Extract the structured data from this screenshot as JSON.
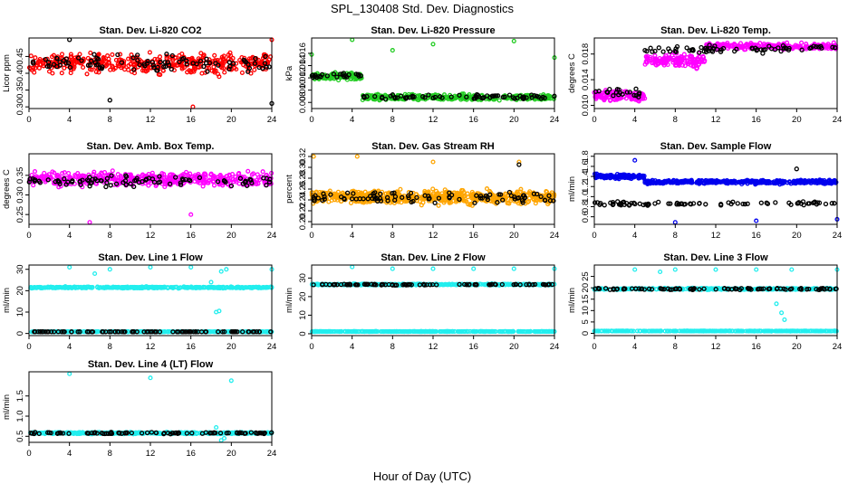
{
  "figure": {
    "title": "SPL_130408  Std. Dev. Diagnostics",
    "xlabel": "Hour of Day (UTC)"
  },
  "colors": {
    "red": "#ff0000",
    "green": "#22cc22",
    "magenta": "#ff00ff",
    "orange": "#ffa500",
    "blue": "#0000ee",
    "cyan": "#22eeee",
    "black": "#000000"
  },
  "chart_data": [
    {
      "type": "scatter",
      "title": "Stan. Dev. Li-820 CO2",
      "ylabel": "Licor ppm",
      "xlim": [
        0,
        24
      ],
      "ylim": [
        0.295,
        0.505
      ],
      "xticks": [
        0,
        4,
        8,
        12,
        16,
        20,
        24
      ],
      "yticks": [
        0.3,
        0.35,
        0.4,
        0.45
      ],
      "ytick_labels": [
        "0.30",
        "0.35",
        "0.40",
        "0.45"
      ],
      "series": [
        {
          "color": "red",
          "x_range": [
            0,
            24
          ],
          "mean": 0.43,
          "spread": 0.04,
          "n": 420,
          "outliers": [
            [
              16.2,
              0.3
            ],
            [
              18.8,
              0.39
            ],
            [
              24,
              0.5
            ]
          ]
        },
        {
          "color": "black",
          "x_range": [
            0,
            24
          ],
          "mean": 0.43,
          "spread": 0.035,
          "n": 90,
          "outliers": [
            [
              4,
              0.5
            ],
            [
              8,
              0.32
            ],
            [
              24,
              0.31
            ]
          ]
        }
      ]
    },
    {
      "type": "scatter",
      "title": "Stan. Dev. Li-820 Pressure",
      "ylabel": "kPa",
      "xlim": [
        0,
        24
      ],
      "ylim": [
        0.007,
        0.0185
      ],
      "xticks": [
        0,
        4,
        8,
        12,
        16,
        20,
        24
      ],
      "yticks": [
        0.008,
        0.01,
        0.012,
        0.014,
        0.016
      ],
      "ytick_labels": [
        "0.008",
        "0.010",
        "0.012",
        "0.014",
        "0.016"
      ],
      "series": [
        {
          "color": "green",
          "x_range": [
            0,
            5
          ],
          "mean": 0.0122,
          "spread": 0.0008,
          "n": 120,
          "outliers": [
            [
              0,
              0.0158
            ],
            [
              4,
              0.0182
            ],
            [
              8,
              0.0165
            ],
            [
              12,
              0.0175
            ],
            [
              20,
              0.018
            ],
            [
              24,
              0.0153
            ]
          ]
        },
        {
          "color": "green",
          "x_range": [
            5,
            24
          ],
          "mean": 0.0088,
          "spread": 0.0007,
          "n": 330,
          "outliers": []
        },
        {
          "color": "black",
          "x_range": [
            0,
            5
          ],
          "mean": 0.0124,
          "spread": 0.0005,
          "n": 25,
          "outliers": []
        },
        {
          "color": "black",
          "x_range": [
            5,
            24
          ],
          "mean": 0.0089,
          "spread": 0.0005,
          "n": 70,
          "outliers": []
        }
      ]
    },
    {
      "type": "scatter",
      "title": "Stan. Dev. Li-820 Temp.",
      "ylabel": "degrees C",
      "xlim": [
        0,
        24
      ],
      "ylim": [
        0.0095,
        0.0205
      ],
      "xticks": [
        0,
        4,
        8,
        12,
        16,
        20,
        24
      ],
      "yticks": [
        0.01,
        0.014,
        0.018
      ],
      "ytick_labels": [
        "0.010",
        "0.014",
        "0.018"
      ],
      "series": [
        {
          "color": "magenta",
          "x_range": [
            0,
            5
          ],
          "mean": 0.0115,
          "spread": 0.0012,
          "n": 140,
          "outliers": []
        },
        {
          "color": "magenta",
          "x_range": [
            5,
            11
          ],
          "mean": 0.017,
          "spread": 0.0015,
          "n": 140,
          "outliers": []
        },
        {
          "color": "magenta",
          "x_range": [
            11,
            24
          ],
          "mean": 0.0192,
          "spread": 0.0007,
          "n": 240,
          "outliers": []
        },
        {
          "color": "black",
          "x_range": [
            0,
            5
          ],
          "mean": 0.012,
          "spread": 0.0012,
          "n": 20,
          "outliers": []
        },
        {
          "color": "black",
          "x_range": [
            5,
            24
          ],
          "mean": 0.0188,
          "spread": 0.0008,
          "n": 70,
          "outliers": []
        }
      ]
    },
    {
      "type": "scatter",
      "title": "Stan. Dev. Amb. Box Temp.",
      "ylabel": "degrees C",
      "xlim": [
        0,
        24
      ],
      "ylim": [
        0.225,
        0.405
      ],
      "xticks": [
        0,
        4,
        8,
        12,
        16,
        20,
        24
      ],
      "yticks": [
        0.25,
        0.3,
        0.35
      ],
      "ytick_labels": [
        "0.25",
        "0.30",
        "0.35"
      ],
      "series": [
        {
          "color": "magenta",
          "x_range": [
            0,
            24
          ],
          "mean": 0.34,
          "spread": 0.025,
          "n": 450,
          "outliers": [
            [
              6,
              0.23
            ],
            [
              16,
              0.25
            ]
          ]
        },
        {
          "color": "black",
          "x_range": [
            0,
            24
          ],
          "mean": 0.335,
          "spread": 0.02,
          "n": 90,
          "outliers": []
        }
      ]
    },
    {
      "type": "scatter",
      "title": "Stan. Dev. Gas Stream RH",
      "ylabel": "percent",
      "xlim": [
        0,
        24
      ],
      "ylim": [
        0.195,
        0.325
      ],
      "xticks": [
        0,
        4,
        8,
        12,
        16,
        20,
        24
      ],
      "yticks": [
        0.2,
        0.22,
        0.24,
        0.26,
        0.28,
        0.3,
        0.32
      ],
      "ytick_labels": [
        "0.20",
        "0.22",
        "0.24",
        "0.26",
        "0.28",
        "0.30",
        "0.32"
      ],
      "series": [
        {
          "color": "orange",
          "x_range": [
            0,
            24
          ],
          "mean": 0.245,
          "spread": 0.018,
          "n": 600,
          "outliers": [
            [
              0.2,
              0.32
            ],
            [
              4.5,
              0.32
            ],
            [
              12,
              0.31
            ],
            [
              20.5,
              0.31
            ]
          ]
        },
        {
          "color": "black",
          "x_range": [
            0,
            24
          ],
          "mean": 0.245,
          "spread": 0.014,
          "n": 90,
          "outliers": [
            [
              20.5,
              0.305
            ]
          ]
        }
      ]
    },
    {
      "type": "scatter",
      "title": "Stan. Dev. Sample Flow",
      "ylabel": "ml/min",
      "xlim": [
        0,
        24
      ],
      "ylim": [
        0.45,
        1.85
      ],
      "xticks": [
        0,
        4,
        8,
        12,
        16,
        20,
        24
      ],
      "yticks": [
        0.6,
        0.8,
        1.0,
        1.2,
        1.4,
        1.6,
        1.8
      ],
      "ytick_labels": [
        "0.6",
        "0.8",
        "1.0",
        "1.2",
        "1.4",
        "1.6",
        "1.8"
      ],
      "series": [
        {
          "color": "blue",
          "x_range": [
            0,
            5
          ],
          "mean": 1.4,
          "spread": 0.06,
          "n": 140,
          "outliers": [
            [
              4,
              1.72
            ],
            [
              8,
              0.49
            ],
            [
              16,
              0.52
            ],
            [
              24,
              0.55
            ]
          ]
        },
        {
          "color": "blue",
          "x_range": [
            5,
            24
          ],
          "mean": 1.29,
          "spread": 0.05,
          "n": 380,
          "outliers": []
        },
        {
          "color": "black",
          "x_range": [
            0,
            24
          ],
          "mean": 0.86,
          "spread": 0.05,
          "n": 80,
          "outliers": [
            [
              20,
              1.55
            ]
          ]
        }
      ]
    },
    {
      "type": "scatter",
      "title": "Stan. Dev. Line 1 Flow",
      "ylabel": "ml/min",
      "xlim": [
        0,
        24
      ],
      "ylim": [
        -1,
        32
      ],
      "xticks": [
        0,
        4,
        8,
        12,
        16,
        20,
        24
      ],
      "yticks": [
        0,
        10,
        20,
        30
      ],
      "ytick_labels": [
        "0",
        "10",
        "20",
        "30"
      ],
      "series": [
        {
          "color": "cyan",
          "x_range": [
            0,
            24
          ],
          "mean": 21.5,
          "spread": 0.5,
          "n": 400,
          "outliers": [
            [
              4,
              31
            ],
            [
              6.5,
              28
            ],
            [
              8,
              30
            ],
            [
              12,
              31
            ],
            [
              16,
              31
            ],
            [
              18,
              24
            ],
            [
              18.5,
              10
            ],
            [
              18.8,
              10.5
            ],
            [
              19,
              29
            ],
            [
              19.5,
              30
            ],
            [
              24,
              30
            ]
          ]
        },
        {
          "color": "cyan",
          "x_range": [
            0,
            24
          ],
          "mean": 0.8,
          "spread": 0.1,
          "n": 350,
          "outliers": []
        },
        {
          "color": "black",
          "x_range": [
            0,
            24
          ],
          "mean": 0.8,
          "spread": 0.05,
          "n": 90,
          "outliers": []
        }
      ]
    },
    {
      "type": "scatter",
      "title": "Stan. Dev. Line 2 Flow",
      "ylabel": "ml/min",
      "xlim": [
        0,
        24
      ],
      "ylim": [
        -1,
        37
      ],
      "xticks": [
        0,
        4,
        8,
        12,
        16,
        20,
        24
      ],
      "yticks": [
        0,
        10,
        20,
        30
      ],
      "ytick_labels": [
        "0",
        "10",
        "20",
        "30"
      ],
      "series": [
        {
          "color": "cyan",
          "x_range": [
            0,
            24
          ],
          "mean": 26.5,
          "spread": 0.5,
          "n": 400,
          "outliers": [
            [
              4,
              36
            ],
            [
              8,
              35
            ],
            [
              12,
              35
            ],
            [
              16,
              35
            ],
            [
              20,
              35
            ],
            [
              24,
              35
            ]
          ]
        },
        {
          "color": "cyan",
          "x_range": [
            0,
            24
          ],
          "mean": 1.2,
          "spread": 0.15,
          "n": 350,
          "outliers": []
        },
        {
          "color": "black",
          "x_range": [
            0,
            24
          ],
          "mean": 26.5,
          "spread": 0.4,
          "n": 90,
          "outliers": []
        }
      ]
    },
    {
      "type": "scatter",
      "title": "Stan. Dev. Line 3 Flow",
      "ylabel": "ml/min",
      "xlim": [
        0,
        24
      ],
      "ylim": [
        -1,
        30
      ],
      "xticks": [
        0,
        4,
        8,
        12,
        16,
        20,
        24
      ],
      "yticks": [
        0,
        5,
        10,
        15,
        20,
        25
      ],
      "ytick_labels": [
        "0",
        "5",
        "10",
        "15",
        "20",
        "25"
      ],
      "series": [
        {
          "color": "cyan",
          "x_range": [
            0,
            24
          ],
          "mean": 19.5,
          "spread": 0.5,
          "n": 400,
          "outliers": [
            [
              4,
              28
            ],
            [
              6.5,
              27
            ],
            [
              8,
              28
            ],
            [
              12,
              28
            ],
            [
              16,
              28
            ],
            [
              18,
              13
            ],
            [
              18.5,
              9
            ],
            [
              18.8,
              6
            ],
            [
              19.5,
              28
            ],
            [
              24,
              28
            ]
          ]
        },
        {
          "color": "cyan",
          "x_range": [
            0,
            24
          ],
          "mean": 1.0,
          "spread": 0.1,
          "n": 350,
          "outliers": []
        },
        {
          "color": "black",
          "x_range": [
            0,
            24
          ],
          "mean": 19.5,
          "spread": 0.5,
          "n": 90,
          "outliers": []
        }
      ]
    },
    {
      "type": "scatter",
      "title": "Stan. Dev. Line 4 (LT) Flow",
      "ylabel": "ml/min",
      "xlim": [
        0,
        24
      ],
      "ylim": [
        0.35,
        2.1
      ],
      "xticks": [
        0,
        4,
        8,
        12,
        16,
        20,
        24
      ],
      "yticks": [
        0.5,
        1.0,
        1.5
      ],
      "ytick_labels": [
        "0.5",
        "1.0",
        "1.5"
      ],
      "series": [
        {
          "color": "cyan",
          "x_range": [
            0,
            24
          ],
          "mean": 0.58,
          "spread": 0.03,
          "n": 400,
          "outliers": [
            [
              4,
              2.05
            ],
            [
              12,
              1.95
            ],
            [
              18.5,
              0.72
            ],
            [
              19,
              0.4
            ],
            [
              19.3,
              0.45
            ],
            [
              20,
              1.88
            ]
          ]
        },
        {
          "color": "black",
          "x_range": [
            0,
            24
          ],
          "mean": 0.58,
          "spread": 0.03,
          "n": 90,
          "outliers": []
        }
      ]
    }
  ]
}
